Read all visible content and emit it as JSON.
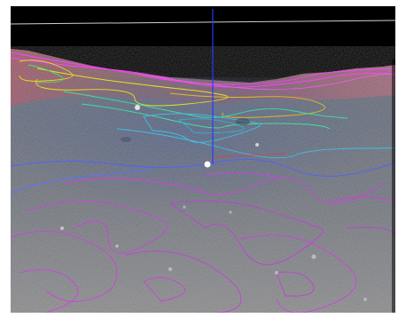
{
  "viewer": {
    "point_label": "",
    "colors": {
      "sky": "#000000",
      "horizon_line": "#cfcfcf",
      "vertical_axis": "#2438ff",
      "label": "#ff2a2a",
      "terrain_dark": "#5a6070",
      "terrain_mid": "#7e828c",
      "ridge_red": "#a0505a",
      "contour_high": "#ff40ff",
      "contour_yellow": "#e8e020",
      "contour_green": "#40e0a0",
      "contour_cyan": "#40c0e0",
      "contour_blue": "#5060ff",
      "contour_low": "#d040e0"
    }
  }
}
